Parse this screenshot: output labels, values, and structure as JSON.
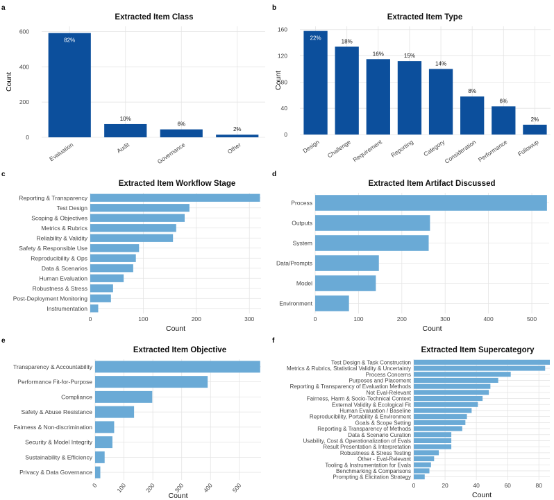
{
  "panels": [
    {
      "id": "a",
      "letter": "a"
    },
    {
      "id": "b",
      "letter": "b"
    },
    {
      "id": "c",
      "letter": "c"
    },
    {
      "id": "d",
      "letter": "d"
    },
    {
      "id": "e",
      "letter": "e"
    },
    {
      "id": "f",
      "letter": "f"
    }
  ],
  "colors": {
    "dark_bar": "#0c4f9c",
    "light_bar": "#6aaad6",
    "grid": "#e4e4e4"
  },
  "chart_data": [
    {
      "type": "bar",
      "title": "Extracted Item Class",
      "xlabel": "",
      "ylabel": "Count",
      "orientation": "vertical",
      "ylim": [
        0,
        630
      ],
      "yticks": [
        0,
        200,
        400,
        600
      ],
      "grid": true,
      "categories": [
        "Evaluation",
        "Audit",
        "Governance",
        "Other"
      ],
      "values": [
        592,
        75,
        45,
        15
      ],
      "labels": [
        "82%",
        "10%",
        "6%",
        "2%"
      ]
    },
    {
      "type": "bar",
      "title": "Extracted Item Type",
      "xlabel": "",
      "ylabel": "Count",
      "orientation": "vertical",
      "ylim": [
        0,
        165
      ],
      "yticks": [
        0,
        40,
        80,
        120,
        160
      ],
      "grid": true,
      "categories": [
        "Design",
        "Challenge",
        "Requirement",
        "Reporting",
        "Category",
        "Consideration",
        "Performance",
        "Followup"
      ],
      "values": [
        158,
        134,
        115,
        112,
        100,
        58,
        43,
        15
      ],
      "labels": [
        "22%",
        "18%",
        "16%",
        "15%",
        "14%",
        "8%",
        "6%",
        "2%"
      ]
    },
    {
      "type": "bar",
      "title": "Extracted Item Workflow Stage",
      "xlabel": "Count",
      "ylabel": "",
      "orientation": "horizontal",
      "xlim": [
        0,
        322
      ],
      "xticks": [
        0,
        100,
        200,
        300
      ],
      "grid": true,
      "categories": [
        "Reporting & Transparency",
        "Test Design",
        "Scoping & Objectives",
        "Metrics & Rubrics",
        "Reliability & Validity",
        "Safety & Responsible Use",
        "Reproducibility & Ops",
        "Data & Scenarios",
        "Human Evaluation",
        "Robustness & Stress",
        "Post-Deployment Monitoring",
        "Instrumentation"
      ],
      "values": [
        320,
        187,
        178,
        162,
        156,
        92,
        86,
        81,
        63,
        43,
        39,
        15
      ]
    },
    {
      "type": "bar",
      "title": "Extracted Item Artifact Discussed",
      "xlabel": "Count",
      "ylabel": "",
      "orientation": "horizontal",
      "xlim": [
        0,
        540
      ],
      "xticks": [
        0,
        100,
        200,
        300,
        400,
        500
      ],
      "grid": true,
      "categories": [
        "Process",
        "Outputs",
        "System",
        "Data/Prompts",
        "Model",
        "Environment"
      ],
      "values": [
        535,
        265,
        262,
        147,
        140,
        78
      ]
    },
    {
      "type": "bar",
      "title": "Extracted Item Objective",
      "xlabel": "Count",
      "ylabel": "",
      "orientation": "horizontal",
      "xlim": [
        0,
        575
      ],
      "xticks": [
        0,
        100,
        200,
        300,
        400,
        500
      ],
      "grid": true,
      "categories": [
        "Transparency & Accountability",
        "Performance Fit-for-Purpose",
        "Compliance",
        "Safety & Abuse Resistance",
        "Fairness & Non-discrimination",
        "Security & Model Integrity",
        "Sustainability & Efficiency",
        "Privacy & Data Governance"
      ],
      "values": [
        572,
        390,
        198,
        135,
        66,
        60,
        33,
        18
      ]
    },
    {
      "type": "bar",
      "title": "Extracted Item Supercategory",
      "xlabel": "Count",
      "ylabel": "",
      "orientation": "horizontal",
      "xlim": [
        0,
        87
      ],
      "xticks": [
        0,
        20,
        40,
        60,
        80
      ],
      "grid": true,
      "categories": [
        "Test Design & Task Construction",
        "Metrics & Rubrics, Statistical Validity & Uncertainty",
        "Process Concerns",
        "Purposes and Placement",
        "Reporting & Transparency of Evaluation Methods",
        "Not Eval-Relevant",
        "Fairness, Harm & Socio-Technical Context",
        "External Validity & Ecological Fit",
        "Human Evaluation / Baseline",
        "Reproducibility, Portability & Environment",
        "Goals & Scope Setting",
        "Reporting & Transparency of Methods",
        "Data & Scenario Curation",
        "Usability, Cost & Operationalization of Evals",
        "Result Presentation & Interpretation",
        "Robustness & Stress Testing",
        "Other - Eval-Relevant",
        "Tooling & Instrumentation for Evals",
        "Benchmarking & Comparisons",
        "Prompting & Elicitation Strategy"
      ],
      "values": [
        87,
        84,
        62,
        54,
        49,
        48,
        44,
        41,
        37,
        34,
        33,
        31,
        24,
        24,
        24,
        16,
        13,
        11,
        10,
        7
      ]
    }
  ]
}
